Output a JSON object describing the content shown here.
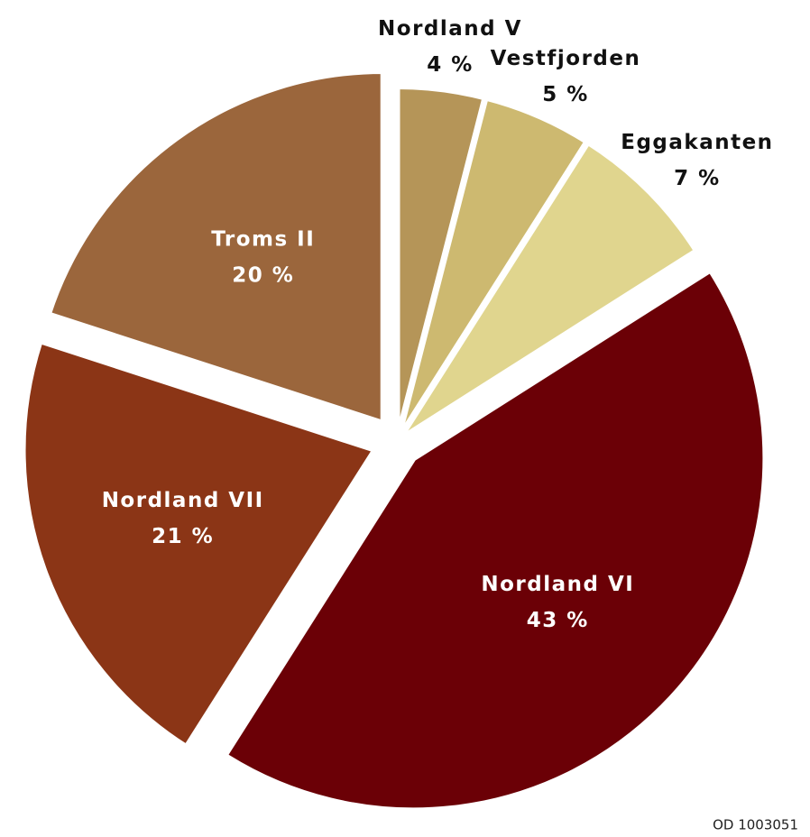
{
  "chart_data": {
    "type": "pie",
    "categories": [
      "Nordland V",
      "Vestfjorden",
      "Eggakanten",
      "Nordland VI",
      "Nordland VII",
      "Troms II"
    ],
    "values": [
      4,
      5,
      7,
      43,
      21,
      20
    ],
    "value_labels": [
      "4 %",
      "5 %",
      "7 %",
      "43 %",
      "21 %",
      "20 %"
    ],
    "colors": [
      "#b59558",
      "#cdb970",
      "#e0d58e",
      "#6b0006",
      "#8b3516",
      "#9b663c"
    ],
    "annotation": "OD 1003051"
  }
}
